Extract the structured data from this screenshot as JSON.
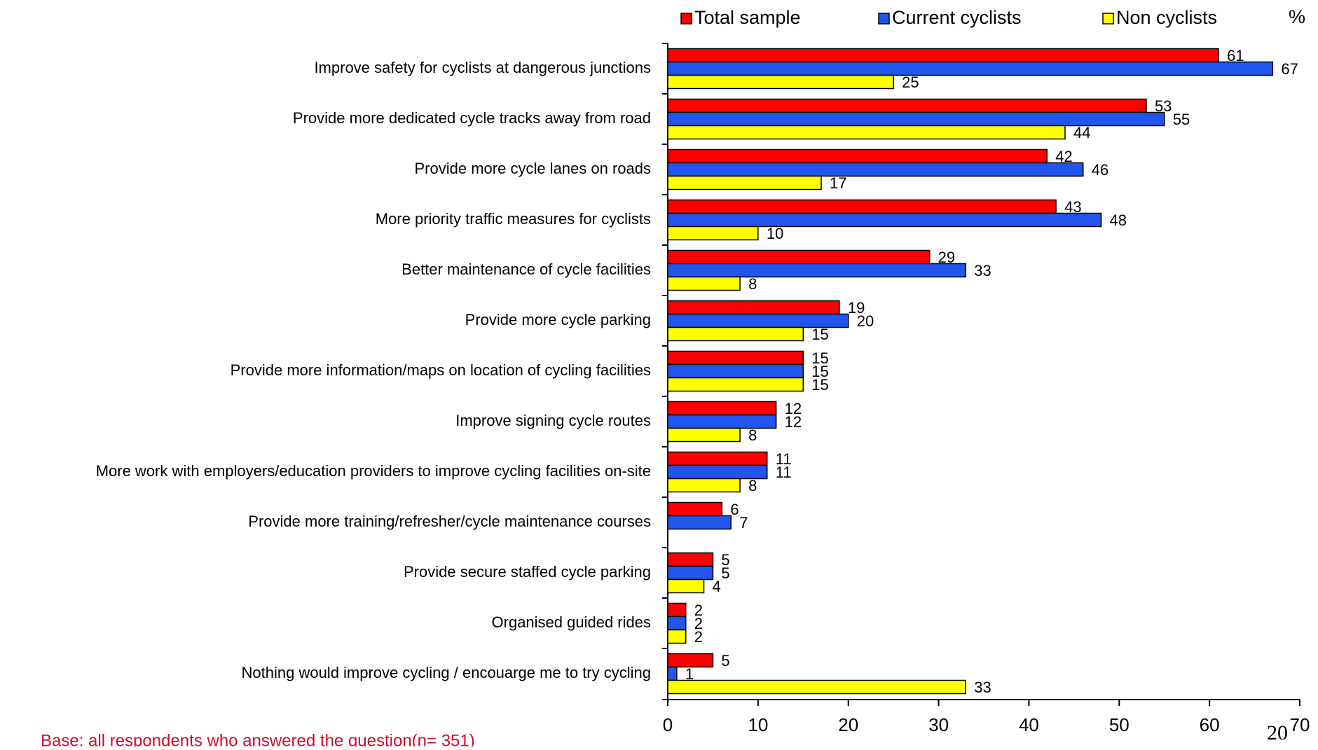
{
  "chart_data": {
    "type": "bar",
    "orientation": "horizontal",
    "unit_label": "%",
    "categories": [
      "Improve safety for cyclists at dangerous junctions",
      "Provide more dedicated cycle tracks away from road",
      "Provide more cycle lanes on roads",
      "More priority traffic measures for cyclists",
      "Better maintenance of cycle facilities",
      "Provide more cycle parking",
      "Provide more information/maps on location of cycling facilities",
      "Improve signing cycle routes",
      "More work with employers/education providers to improve cycling facilities on-site",
      "Provide more training/refresher/cycle maintenance courses",
      "Provide secure staffed cycle parking",
      "Organised guided rides",
      "Nothing would improve cycling / encouarge me to try cycling"
    ],
    "series": [
      {
        "name": "Total sample",
        "color": "#ff0000",
        "values": [
          61,
          53,
          42,
          43,
          29,
          19,
          15,
          12,
          11,
          6,
          5,
          2,
          5
        ]
      },
      {
        "name": "Current cyclists",
        "color": "#2255ee",
        "values": [
          67,
          55,
          46,
          48,
          33,
          20,
          15,
          12,
          11,
          7,
          5,
          2,
          1
        ]
      },
      {
        "name": "Non cyclists",
        "color": "#ffff00",
        "values": [
          25,
          44,
          17,
          10,
          8,
          15,
          15,
          8,
          8,
          null,
          4,
          2,
          33
        ]
      }
    ],
    "xlim": [
      0,
      70
    ],
    "xticks": [
      0,
      10,
      20,
      30,
      40,
      50,
      60,
      70
    ],
    "legend": "top"
  },
  "footnote": "Base: all respondents who answered the question(n= 351)",
  "page_number": "20"
}
